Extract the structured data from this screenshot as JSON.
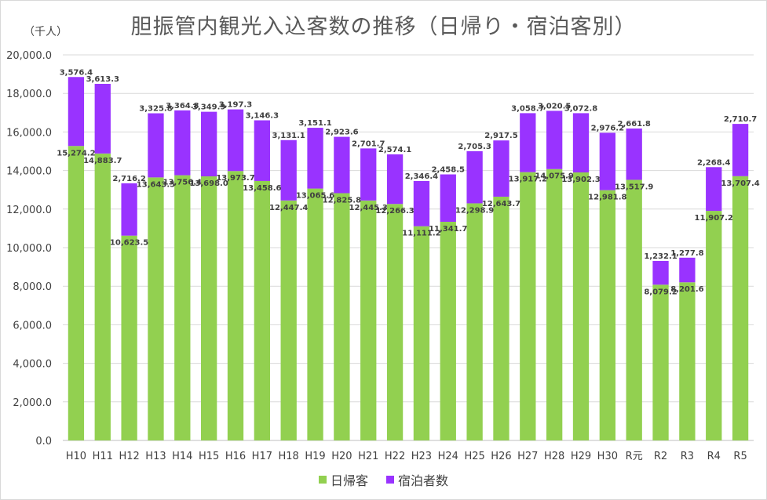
{
  "chart_data": {
    "type": "bar",
    "stacked": true,
    "title": "胆振管内観光入込客数の推移（日帰り・宿泊客別）",
    "unit_label": "（千人）",
    "xlabel": "",
    "ylabel": "",
    "ylim": [
      0,
      20000
    ],
    "ytick_step": 2000,
    "ytick_labels": [
      "0.0",
      "2,000.0",
      "4,000.0",
      "6,000.0",
      "8,000.0",
      "10,000.0",
      "12,000.0",
      "14,000.0",
      "16,000.0",
      "18,000.0",
      "20,000.0"
    ],
    "grid": true,
    "legend_position": "bottom",
    "categories": [
      "H10",
      "H11",
      "H12",
      "H13",
      "H14",
      "H15",
      "H16",
      "H17",
      "H18",
      "H19",
      "H20",
      "H21",
      "H22",
      "H23",
      "H24",
      "H25",
      "H26",
      "H27",
      "H28",
      "H29",
      "H30",
      "R元",
      "R2",
      "R3",
      "R4",
      "R5"
    ],
    "series": [
      {
        "name": "日帰客",
        "color": "#92d050",
        "values": [
          15274.2,
          14883.7,
          10623.5,
          13643.5,
          13756.4,
          13698.0,
          13973.7,
          13458.6,
          12447.4,
          13065.6,
          12825.8,
          12445.3,
          12266.3,
          11111.2,
          11341.7,
          12298.9,
          12643.7,
          13917.2,
          14075.9,
          13902.3,
          12981.8,
          13517.9,
          8079.2,
          8201.6,
          11907.2,
          13707.4
        ],
        "labels": [
          "15,274.2",
          "14,883.7",
          "10,623.5",
          "13,643.5",
          "13,756.4",
          "13,698.0",
          "13,973.7",
          "13,458.6",
          "12,447.4",
          "13,065.6",
          "12,825.8",
          "12,445.3",
          "12,266.3",
          "11,111.2",
          "11,341.7",
          "12,298.9",
          "12,643.7",
          "13,917.2",
          "14,075.9",
          "13,902.3",
          "12,981.8",
          "13,517.9",
          "8,079.2",
          "8,201.6",
          "11,907.2",
          "13,707.4"
        ]
      },
      {
        "name": "宿泊者数",
        "color": "#9933ff",
        "values": [
          3576.4,
          3613.3,
          2716.2,
          3325.8,
          3364.8,
          3349.9,
          3197.3,
          3146.3,
          3131.1,
          3151.1,
          2923.6,
          2701.7,
          2574.1,
          2346.4,
          2458.5,
          2705.3,
          2917.5,
          3058.7,
          3020.5,
          3072.8,
          2976.2,
          2661.8,
          1232.1,
          1277.8,
          2268.4,
          2710.7
        ],
        "labels": [
          "3,576.4",
          "3,613.3",
          "2,716.2",
          "3,325.8",
          "3,364.8",
          "3,349.9",
          "3,197.3",
          "3,146.3",
          "3,131.1",
          "3,151.1",
          "2,923.6",
          "2,701.7",
          "2,574.1",
          "2,346.4",
          "2,458.5",
          "2,705.3",
          "2,917.5",
          "3,058.7",
          "3,020.5",
          "3,072.8",
          "2,976.2",
          "2,661.8",
          "1,232.1",
          "1,277.8",
          "2,268.4",
          "2,710.7"
        ]
      }
    ]
  }
}
